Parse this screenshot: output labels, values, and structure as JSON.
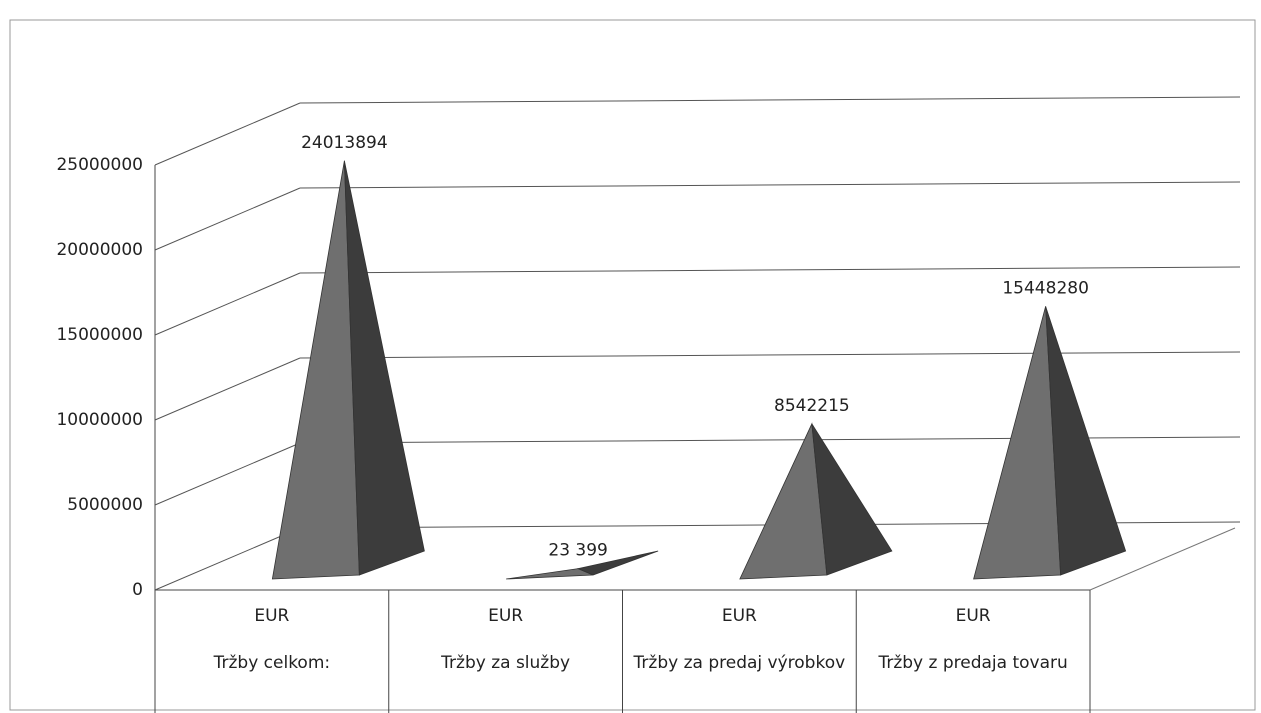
{
  "chart_data": {
    "type": "pyramid",
    "categories": [
      "Tržby celkom:",
      "Tržby za služby",
      "Tržby za predaj výrobkov",
      "Tržby z predaja tovaru"
    ],
    "category_units": [
      "EUR",
      "EUR",
      "EUR",
      "EUR"
    ],
    "values": [
      24013894,
      23399,
      8542215,
      15448280
    ],
    "value_labels": [
      "24013894",
      "23 399",
      "8542215",
      "15448280"
    ],
    "color": "#6f6f6f",
    "ylim": [
      0,
      25000000
    ],
    "yticks": [
      0,
      5000000,
      10000000,
      15000000,
      20000000,
      25000000
    ],
    "grid": true
  }
}
